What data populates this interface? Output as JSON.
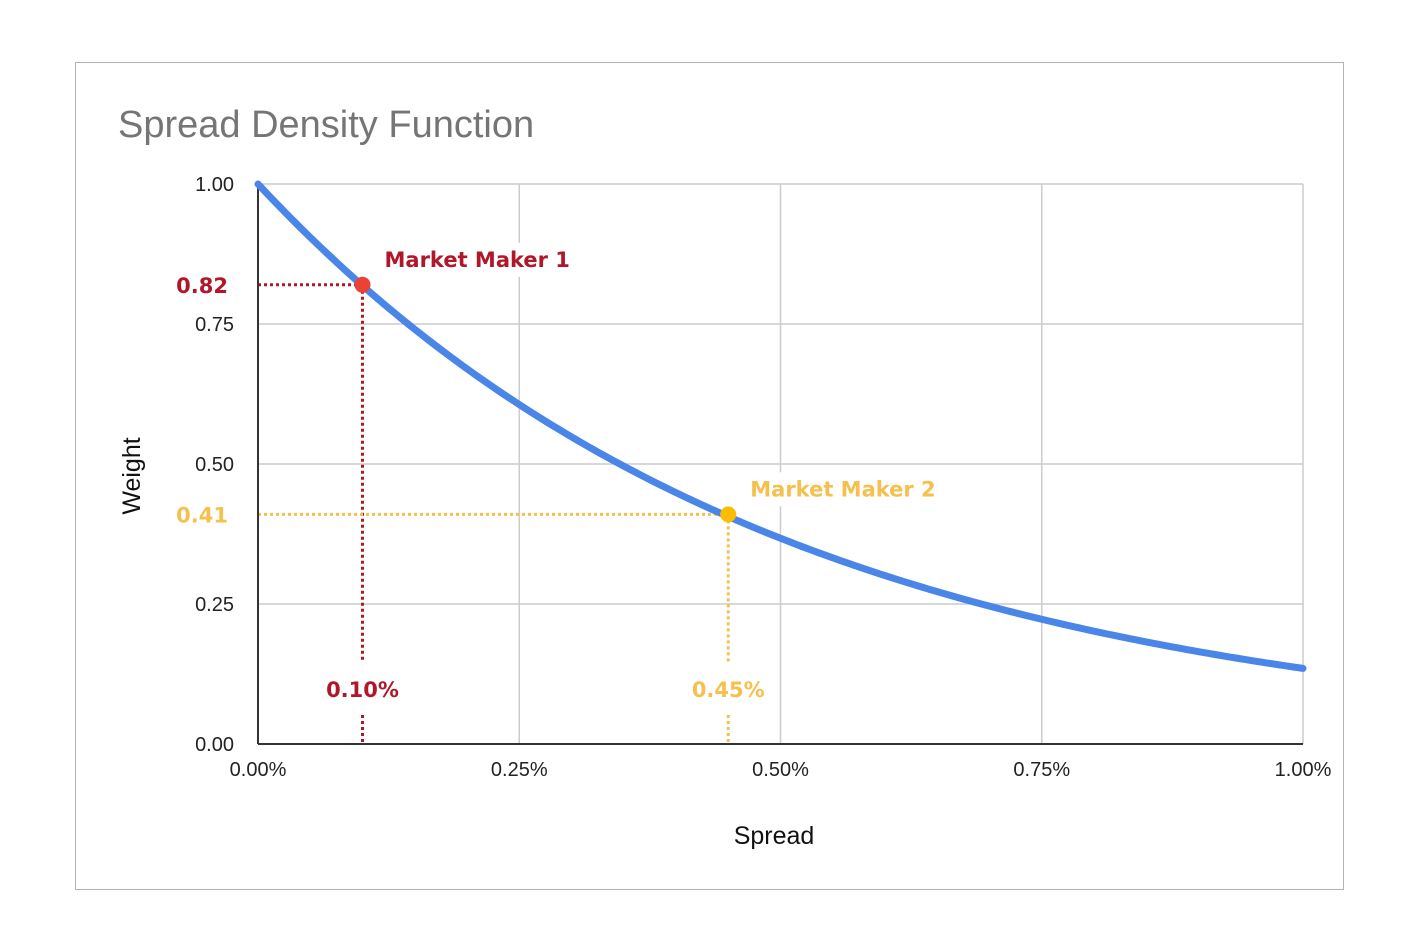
{
  "chart_data": {
    "type": "line",
    "title": "Spread Density Function",
    "xlabel": "Spread",
    "ylabel": "Weight",
    "xlim": [
      0,
      1.0
    ],
    "ylim": [
      0,
      1.0
    ],
    "x_unit": "%",
    "x_ticks": [
      "0.00%",
      "0.25%",
      "0.50%",
      "0.75%",
      "1.00%"
    ],
    "y_ticks": [
      "0.00",
      "0.25",
      "0.50",
      "0.75",
      "1.00"
    ],
    "grid": true,
    "legend": "none",
    "series": [
      {
        "color": "#4a86e8",
        "x": [
          0,
          0.05,
          0.1,
          0.15,
          0.2,
          0.25,
          0.3,
          0.35,
          0.4,
          0.45,
          0.5,
          0.55,
          0.6,
          0.65,
          0.7,
          0.75,
          0.8,
          0.85,
          0.9,
          0.95,
          1.0
        ],
        "y": [
          1.0,
          0.905,
          0.819,
          0.741,
          0.67,
          0.607,
          0.549,
          0.497,
          0.449,
          0.407,
          0.368,
          0.333,
          0.301,
          0.273,
          0.247,
          0.223,
          0.202,
          0.183,
          0.165,
          0.15,
          0.135
        ]
      }
    ],
    "annotations": [
      {
        "label": "Market Maker 1",
        "x": 0.1,
        "y": 0.82,
        "x_text": "0.10%",
        "y_text": "0.82",
        "color": "#b0172b",
        "point_color": "#ea4335"
      },
      {
        "label": "Market Maker 2",
        "x": 0.45,
        "y": 0.41,
        "x_text": "0.45%",
        "y_text": "0.41",
        "color": "#f6c04e",
        "point_color": "#fbbc04"
      }
    ]
  }
}
